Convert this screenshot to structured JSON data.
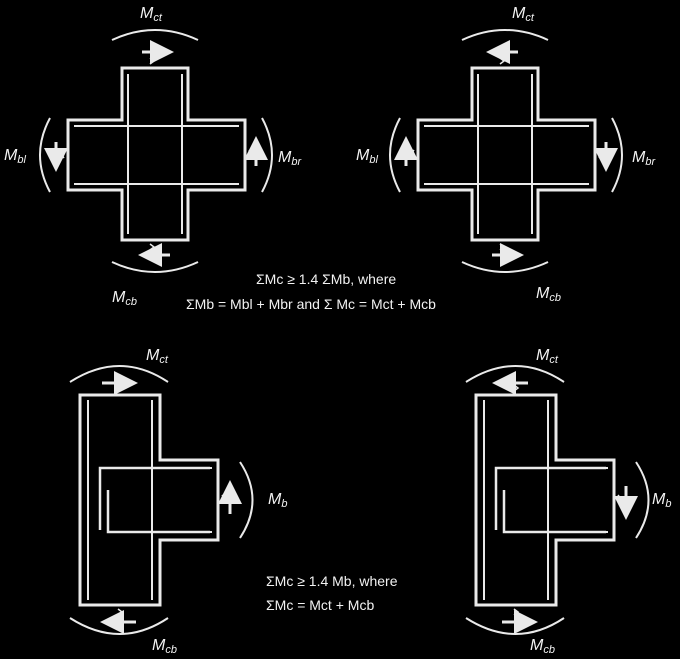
{
  "moment_labels": {
    "column_top": {
      "main": "M",
      "sub": "ct"
    },
    "column_bottom": {
      "main": "M",
      "sub": "cb"
    },
    "beam_left": {
      "main": "M",
      "sub": "bl"
    },
    "beam_right": {
      "main": "M",
      "sub": "br"
    },
    "beam": {
      "main": "M",
      "sub": "b"
    }
  },
  "interior_joint": {
    "eq_line1": "ΣMc ≥ 1.4 ΣMb, where",
    "eq_line2": "ΣMb = Mbl + Mbr and Σ Mc = Mct + Mcb"
  },
  "exterior_joint": {
    "eq_line1": "ΣMc ≥ 1.4 Mb, where",
    "eq_line2": "ΣMc = Mct + Mcb"
  },
  "colors": {
    "background": "#000000",
    "line": "#eaeaea"
  }
}
